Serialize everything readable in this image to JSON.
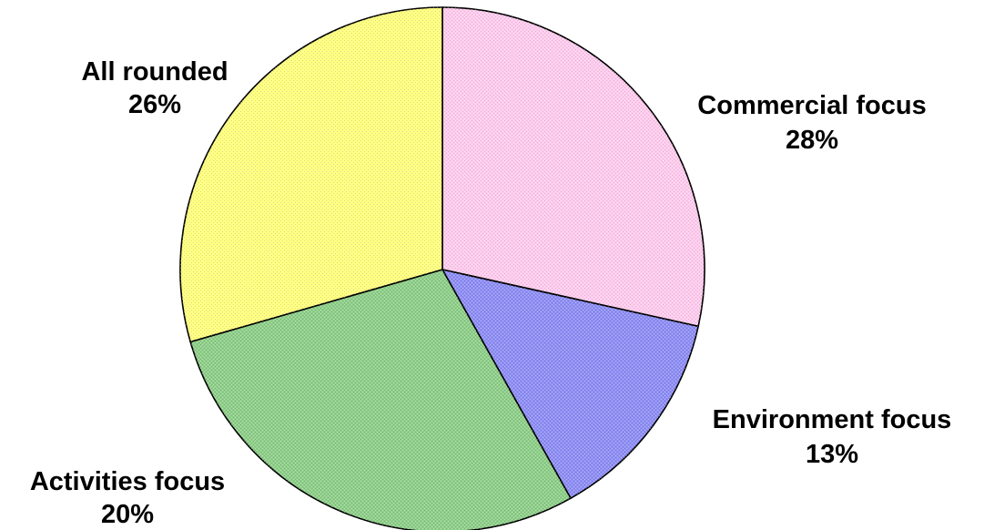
{
  "chart_data": {
    "type": "pie",
    "start_angle_deg": 0,
    "direction": "clockwise",
    "slices": [
      {
        "label": "Commercial focus",
        "percent_label": "28%",
        "value": 28,
        "color": "#ffccee"
      },
      {
        "label": "Environment focus",
        "percent_label": "13%",
        "value": 13,
        "color": "#8f8ff5"
      },
      {
        "label": "Activities focus",
        "percent_label": "20%",
        "value": 20,
        "color": "#8fcf8a"
      },
      {
        "label": "All rounded",
        "percent_label": "26%",
        "value": 26,
        "color": "#ffff80"
      }
    ],
    "legend": "none"
  }
}
